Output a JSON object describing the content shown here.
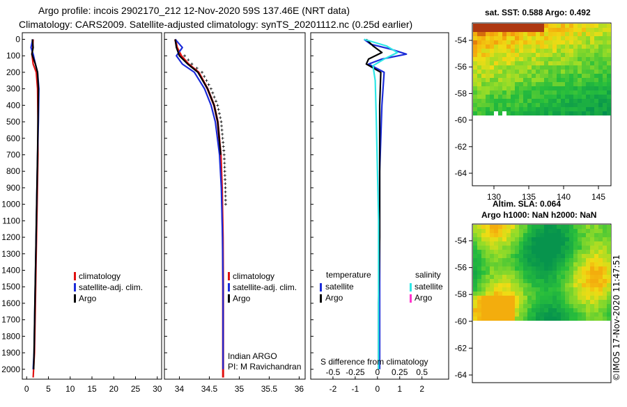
{
  "title_line1": "Argo profile: incois 2902170_212 12-Nov-2020 59S 137.46E (NRT data)",
  "title_line2": "Climatology: CARS2009. Satellite-adjusted climatology: synTS_20201112.nc (0.25d earlier)",
  "timestamp": "©IMOS 17-Nov-2020 11:47:51",
  "credit_line1": "Indian ARGO",
  "credit_line2": "PI: M Ravichandran",
  "colors": {
    "climatology": "#e01010",
    "satellite": "#1a2bd8",
    "argo": "#000000",
    "sat_cyan": "#2ee6e6",
    "argo_magenta": "#ff33cc"
  },
  "depth_ticks": [
    "0",
    "100",
    "200",
    "300",
    "400",
    "500",
    "600",
    "700",
    "800",
    "900",
    "1000",
    "1100",
    "1200",
    "1300",
    "1400",
    "1500",
    "1600",
    "1700",
    "1800",
    "1900",
    "2000"
  ],
  "chart_data": [
    {
      "type": "line",
      "name": "temperature-profile",
      "xlabel": "",
      "ylabel": "depth",
      "xlim": [
        -1,
        31
      ],
      "ylim": [
        2060,
        -40
      ],
      "xticks": [
        "0",
        "5",
        "10",
        "15",
        "20",
        "25",
        "30"
      ],
      "legend": [
        "climatology",
        "satellite-adj. clim.",
        "Argo"
      ],
      "series": [
        {
          "name": "climatology",
          "color": "#e01010",
          "x": [
            1.5,
            1.4,
            1.2,
            1.5,
            2.2,
            2.5,
            2.6,
            2.6,
            2.4,
            2.2,
            2.0,
            1.8,
            1.5
          ],
          "y": [
            0,
            50,
            90,
            150,
            200,
            300,
            500,
            700,
            1000,
            1300,
            1600,
            1900,
            2050
          ]
        },
        {
          "name": "satellite-adj. clim.",
          "color": "#1a2bd8",
          "x": [
            1.4,
            1.0,
            1.5,
            2.0,
            2.5,
            2.8,
            2.7,
            2.5,
            2.3,
            2.1,
            1.9,
            1.7,
            1.5
          ],
          "y": [
            0,
            50,
            90,
            150,
            200,
            300,
            500,
            700,
            1000,
            1300,
            1600,
            1900,
            2000
          ]
        },
        {
          "name": "Argo",
          "color": "#000000",
          "x": [
            1.3,
            1.5,
            1.2,
            2.0,
            2.5,
            2.7,
            2.6,
            2.5,
            2.3,
            2.1,
            1.9,
            1.7,
            1.6
          ],
          "y": [
            0,
            50,
            90,
            150,
            200,
            300,
            500,
            700,
            1000,
            1300,
            1600,
            1900,
            2000
          ]
        }
      ]
    },
    {
      "type": "line",
      "name": "salinity-profile",
      "xlabel": "",
      "ylabel": "depth",
      "xlim": [
        33.75,
        36.1
      ],
      "ylim": [
        2060,
        -40
      ],
      "xticks": [
        "34",
        "34.5",
        "35",
        "35.5",
        "36"
      ],
      "legend": [
        "climatology",
        "satellite-adj. clim.",
        "Argo"
      ],
      "series": [
        {
          "name": "climatology",
          "color": "#e01010",
          "x": [
            33.93,
            33.96,
            34.03,
            34.15,
            34.32,
            34.47,
            34.58,
            34.64,
            34.69,
            34.71,
            34.725,
            34.73,
            34.73,
            34.73
          ],
          "y": [
            0,
            50,
            100,
            150,
            200,
            300,
            400,
            500,
            700,
            900,
            1200,
            1500,
            1800,
            2050
          ]
        },
        {
          "name": "satellite-adj. clim.",
          "color": "#1a2bd8",
          "x": [
            33.93,
            34.05,
            33.95,
            34.05,
            34.25,
            34.42,
            34.53,
            34.6,
            34.67,
            34.7,
            34.72,
            34.73,
            34.73,
            34.73
          ],
          "y": [
            0,
            50,
            100,
            150,
            200,
            300,
            400,
            500,
            700,
            900,
            1200,
            1500,
            1800,
            2000
          ]
        },
        {
          "name": "Argo",
          "color": "#000000",
          "x": [
            33.93,
            33.95,
            34.0,
            34.14,
            34.31,
            34.47,
            34.58,
            34.64,
            34.69
          ],
          "y": [
            0,
            50,
            100,
            150,
            200,
            300,
            400,
            500,
            700
          ]
        }
      ]
    },
    {
      "type": "line",
      "name": "difference-from-climatology",
      "xlabel": "S difference from climatology",
      "xlim": [
        -3,
        3.2
      ],
      "ylim": [
        2060,
        -40
      ],
      "xticks": [
        "-2",
        "-1",
        "0",
        "1",
        "2"
      ],
      "xticks_secondary": [
        "-0.5",
        "-0.25",
        "0",
        "0.25",
        "0.5"
      ],
      "legend_left_title": "temperature",
      "legend_right_title": "salinity",
      "legend": [
        "satellite",
        "Argo",
        "satellite",
        "Argo"
      ],
      "series": [
        {
          "name": "temperature satellite",
          "color": "#1a2bd8",
          "x": [
            -0.6,
            -0.3,
            0.6,
            1.3,
            0.2,
            -0.4,
            0.3,
            0.2,
            0.15,
            0.1,
            0.1,
            0.1,
            0.1,
            0.1
          ],
          "y": [
            0,
            30,
            60,
            90,
            120,
            150,
            200,
            400,
            600,
            800,
            1200,
            1600,
            1900,
            2000
          ]
        },
        {
          "name": "temperature Argo",
          "color": "#000000",
          "x": [
            -0.5,
            -0.2,
            0.2,
            -0.4,
            -0.5,
            0.15,
            0.1,
            0.1,
            0.1,
            0.1,
            0.05,
            0.05,
            0.05
          ],
          "y": [
            0,
            40,
            80,
            120,
            150,
            200,
            400,
            600,
            800,
            1200,
            1600,
            1900,
            2000
          ]
        },
        {
          "name": "salinity satellite",
          "color": "#2ee6e6",
          "x": [
            -0.6,
            0.4,
            0.9,
            0.3,
            -0.2,
            -0.1,
            -0.05,
            0.0,
            0.05,
            0.05,
            0.05,
            0.05,
            0.05
          ],
          "y": [
            0,
            40,
            80,
            120,
            160,
            250,
            500,
            800,
            1100,
            1300,
            1500,
            1800,
            2000
          ]
        }
      ]
    },
    {
      "type": "heatmap",
      "name": "sat-sst-map",
      "title": "sat. SST: 0.588 Argo: 0.492",
      "xticks": [
        "130",
        "135",
        "140",
        "145"
      ],
      "yticks": [
        "-54",
        "-56",
        "-58",
        "-60",
        "-62",
        "-64"
      ]
    },
    {
      "type": "heatmap",
      "name": "altim-sla-map",
      "title": "Altim. SLA: 0.064",
      "subtitle": "Argo h1000: NaN h2000: NaN",
      "yticks": [
        "-54",
        "-56",
        "-58",
        "-60",
        "-62",
        "-64"
      ]
    }
  ]
}
